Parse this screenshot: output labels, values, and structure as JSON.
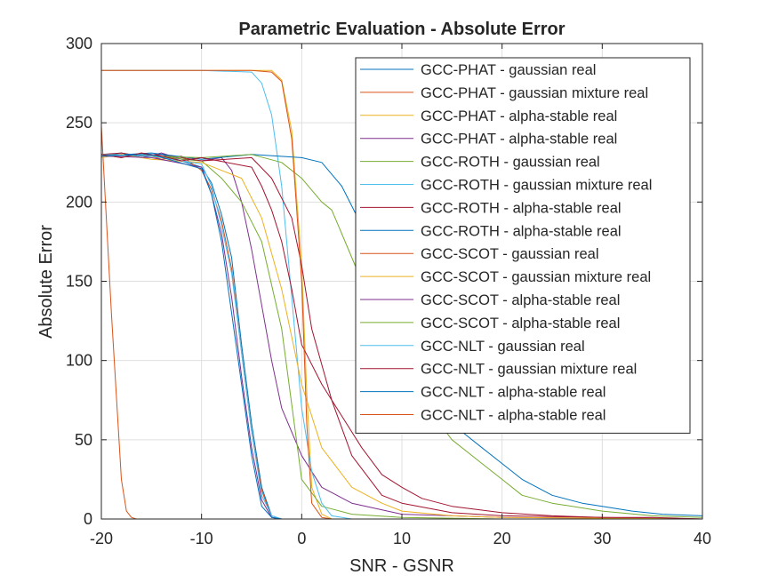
{
  "chart_data": {
    "type": "line",
    "title": "Parametric Evaluation - Absolute Error",
    "xlabel": "SNR - GSNR",
    "ylabel": "Absolute Error",
    "xlim": [
      -20,
      40
    ],
    "ylim": [
      0,
      300
    ],
    "xticks": [
      -20,
      -10,
      0,
      10,
      20,
      30,
      40
    ],
    "yticks": [
      0,
      50,
      100,
      150,
      200,
      250,
      300
    ],
    "xtick_labels": [
      "-20",
      "-10",
      "0",
      "10",
      "20",
      "30",
      "40"
    ],
    "ytick_labels": [
      "0",
      "50",
      "100",
      "150",
      "200",
      "250",
      "300"
    ],
    "grid": true,
    "legend_position": "top-right",
    "series": [
      {
        "name": "GCC-PHAT - gaussian real",
        "color": "#0072BD",
        "x": [
          -20,
          -18,
          -16,
          -14,
          -12,
          -10,
          -9,
          -8,
          -7,
          -6,
          -5,
          -4,
          -3,
          -2,
          0,
          40
        ],
        "y": [
          229,
          231,
          228,
          230,
          226,
          222,
          212,
          192,
          165,
          110,
          60,
          20,
          2,
          0,
          0,
          0
        ]
      },
      {
        "name": "GCC-PHAT - gaussian mixture real",
        "color": "#D95319",
        "x": [
          -20,
          -18,
          -16,
          -14,
          -12,
          -10,
          -9,
          -8,
          -7,
          -6,
          -5,
          -4,
          -3,
          -2,
          0,
          40
        ],
        "y": [
          230,
          228,
          231,
          227,
          229,
          220,
          208,
          188,
          158,
          105,
          55,
          18,
          1,
          0,
          0,
          0
        ]
      },
      {
        "name": "GCC-PHAT - alpha-stable real",
        "color": "#EDB120",
        "x": [
          -20,
          -15,
          -10,
          -5,
          -3,
          -2,
          -1,
          0,
          0.5,
          1,
          2,
          3,
          40
        ],
        "y": [
          283,
          283,
          283,
          283,
          283,
          277,
          245,
          160,
          80,
          20,
          3,
          0,
          0
        ]
      },
      {
        "name": "GCC-PHAT - alpha-stable real",
        "color": "#7E2F8E",
        "x": [
          -20,
          -18,
          -16,
          -14,
          -12,
          -10,
          -8,
          -7,
          -6,
          -5,
          -4,
          -3,
          -2,
          0,
          2,
          5,
          10,
          20,
          40
        ],
        "y": [
          229,
          230,
          228,
          231,
          227,
          226,
          228,
          220,
          200,
          170,
          135,
          100,
          70,
          40,
          20,
          10,
          3,
          1,
          0
        ]
      },
      {
        "name": "GCC-ROTH - gaussian real",
        "color": "#77AC30",
        "x": [
          -20,
          -15,
          -10,
          -8,
          -6,
          -4,
          -2,
          0,
          2,
          5,
          10,
          20,
          40
        ],
        "y": [
          230,
          229,
          226,
          215,
          200,
          175,
          120,
          25,
          8,
          3,
          1,
          0,
          0
        ]
      },
      {
        "name": "GCC-ROTH - gaussian mixture real",
        "color": "#4DBEEE",
        "x": [
          -20,
          -15,
          -10,
          -5,
          -4,
          -3,
          -2,
          -1,
          0,
          1,
          2,
          3,
          5,
          40
        ],
        "y": [
          283,
          283,
          283,
          282,
          275,
          255,
          210,
          140,
          70,
          30,
          10,
          2,
          0,
          0
        ]
      },
      {
        "name": "GCC-ROTH - alpha-stable real",
        "color": "#A2142F",
        "x": [
          -20,
          -18,
          -16,
          -14,
          -10,
          -5,
          -3,
          -1,
          0,
          1,
          3,
          5,
          8,
          10,
          15,
          20,
          30,
          40
        ],
        "y": [
          230,
          231,
          229,
          230,
          226,
          228,
          215,
          190,
          160,
          120,
          75,
          40,
          15,
          10,
          4,
          2,
          1,
          0
        ]
      },
      {
        "name": "GCC-ROTH - alpha-stable real",
        "color": "#0072BD",
        "x": [
          -20,
          -15,
          -10,
          -5,
          0,
          2,
          4,
          6,
          8,
          10,
          12,
          14,
          16,
          18,
          20,
          22,
          25,
          28,
          30,
          33,
          36,
          40
        ],
        "y": [
          229,
          231,
          227,
          230,
          228,
          225,
          210,
          185,
          155,
          125,
          95,
          70,
          55,
          45,
          35,
          25,
          15,
          10,
          8,
          5,
          3,
          2
        ]
      },
      {
        "name": "GCC-SCOT - gaussian real",
        "color": "#D95319",
        "x": [
          -20,
          -19,
          -18,
          -17.5,
          -17,
          -16.5,
          -16,
          40
        ],
        "y": [
          248,
          130,
          25,
          5,
          1,
          0,
          0,
          0
        ]
      },
      {
        "name": "GCC-SCOT - gaussian mixture real",
        "color": "#EDB120",
        "x": [
          -20,
          -18,
          -15,
          -10,
          -6,
          -4,
          -2,
          0,
          2,
          5,
          8,
          10,
          15,
          20,
          40
        ],
        "y": [
          228,
          230,
          227,
          225,
          215,
          190,
          145,
          85,
          45,
          20,
          10,
          5,
          2,
          1,
          0
        ]
      },
      {
        "name": "GCC-SCOT - alpha-stable real",
        "color": "#7E2F8E",
        "x": [
          -20,
          -15,
          -10,
          -9,
          -8,
          -7,
          -6,
          -5,
          -4,
          -3,
          -2,
          0,
          40
        ],
        "y": [
          229,
          228,
          222,
          205,
          180,
          140,
          90,
          45,
          12,
          1,
          0,
          0,
          0
        ]
      },
      {
        "name": "GCC-SCOT - alpha-stable real",
        "color": "#77AC30",
        "x": [
          -20,
          -15,
          -10,
          -5,
          -2,
          0,
          2,
          3,
          4,
          6,
          8,
          10,
          12,
          15,
          18,
          20,
          22,
          25,
          30,
          35,
          40
        ],
        "y": [
          230,
          229,
          228,
          230,
          225,
          215,
          200,
          195,
          180,
          150,
          125,
          100,
          75,
          50,
          35,
          25,
          15,
          10,
          5,
          2,
          1
        ]
      },
      {
        "name": "GCC-NLT - gaussian real",
        "color": "#4DBEEE",
        "x": [
          -20,
          -15,
          -10,
          -9,
          -8,
          -7,
          -6,
          -5,
          -4,
          -3,
          -2,
          0,
          40
        ],
        "y": [
          230,
          229,
          224,
          210,
          185,
          155,
          105,
          55,
          15,
          2,
          0,
          0,
          0
        ]
      },
      {
        "name": "GCC-NLT - gaussian mixture real",
        "color": "#A2142F",
        "x": [
          -20,
          -18,
          -16,
          -14,
          -12,
          -10,
          -5,
          -4,
          -3,
          -2,
          -1,
          0,
          2,
          4,
          6,
          8,
          10,
          12,
          15,
          20,
          25,
          30,
          35,
          40
        ],
        "y": [
          230,
          228,
          231,
          229,
          226,
          228,
          222,
          210,
          195,
          175,
          145,
          110,
          85,
          65,
          45,
          28,
          20,
          13,
          8,
          4,
          2,
          1,
          1,
          0
        ]
      },
      {
        "name": "GCC-NLT - alpha-stable real",
        "color": "#0072BD",
        "x": [
          -20,
          -15,
          -10,
          -9,
          -8,
          -7,
          -6,
          -5,
          -4,
          -3,
          -2,
          0,
          40
        ],
        "y": [
          229,
          230,
          221,
          205,
          175,
          130,
          85,
          40,
          8,
          1,
          0,
          0,
          0
        ]
      },
      {
        "name": "GCC-NLT - alpha-stable real",
        "color": "#D95319",
        "x": [
          -20,
          -15,
          -10,
          -5,
          -3,
          -2,
          -1,
          0,
          0.5,
          1,
          2,
          3,
          40
        ],
        "y": [
          283,
          283,
          283,
          283,
          282,
          276,
          240,
          150,
          60,
          10,
          1,
          0,
          0
        ]
      }
    ]
  }
}
